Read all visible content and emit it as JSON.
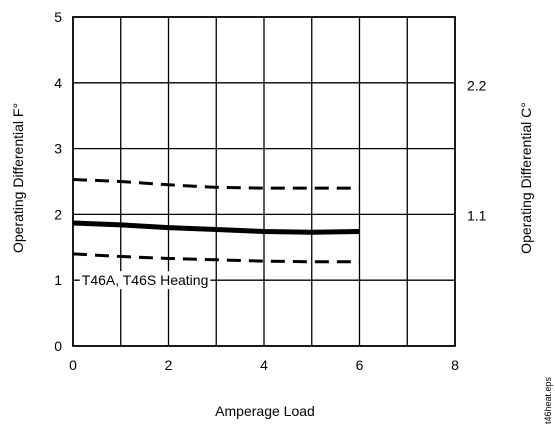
{
  "chart_data": {
    "type": "line",
    "title": "",
    "xlabel": "Amperage Load",
    "ylabel": "Operating Differential F°",
    "ylabel_right": "Operating Differential C°",
    "xlim": [
      0,
      8
    ],
    "ylim": [
      0,
      5
    ],
    "x_ticks": [
      0,
      2,
      4,
      6,
      8
    ],
    "y_ticks": [
      0,
      1,
      2,
      3,
      4,
      5
    ],
    "right_ticks": [
      {
        "label": "1.1",
        "at_f": 1.98
      },
      {
        "label": "2.2",
        "at_f": 3.96
      }
    ],
    "grid": true,
    "series": [
      {
        "style": "dashed",
        "x": [
          0,
          1,
          2,
          3,
          4,
          5,
          6
        ],
        "y": [
          2.53,
          2.5,
          2.45,
          2.41,
          2.4,
          2.4,
          2.4
        ]
      },
      {
        "style": "solid",
        "x": [
          0,
          1,
          2,
          3,
          4,
          5,
          6
        ],
        "y": [
          1.87,
          1.84,
          1.8,
          1.77,
          1.74,
          1.73,
          1.74
        ]
      },
      {
        "style": "dashed",
        "x": [
          0,
          1,
          2,
          3,
          4,
          5,
          6
        ],
        "y": [
          1.4,
          1.36,
          1.33,
          1.31,
          1.29,
          1.28,
          1.28
        ]
      }
    ],
    "annotations": [
      {
        "text": "T46A, T46S Heating",
        "x": 0.1,
        "y": 1.0
      }
    ]
  },
  "filename_label": "t46heat.eps"
}
